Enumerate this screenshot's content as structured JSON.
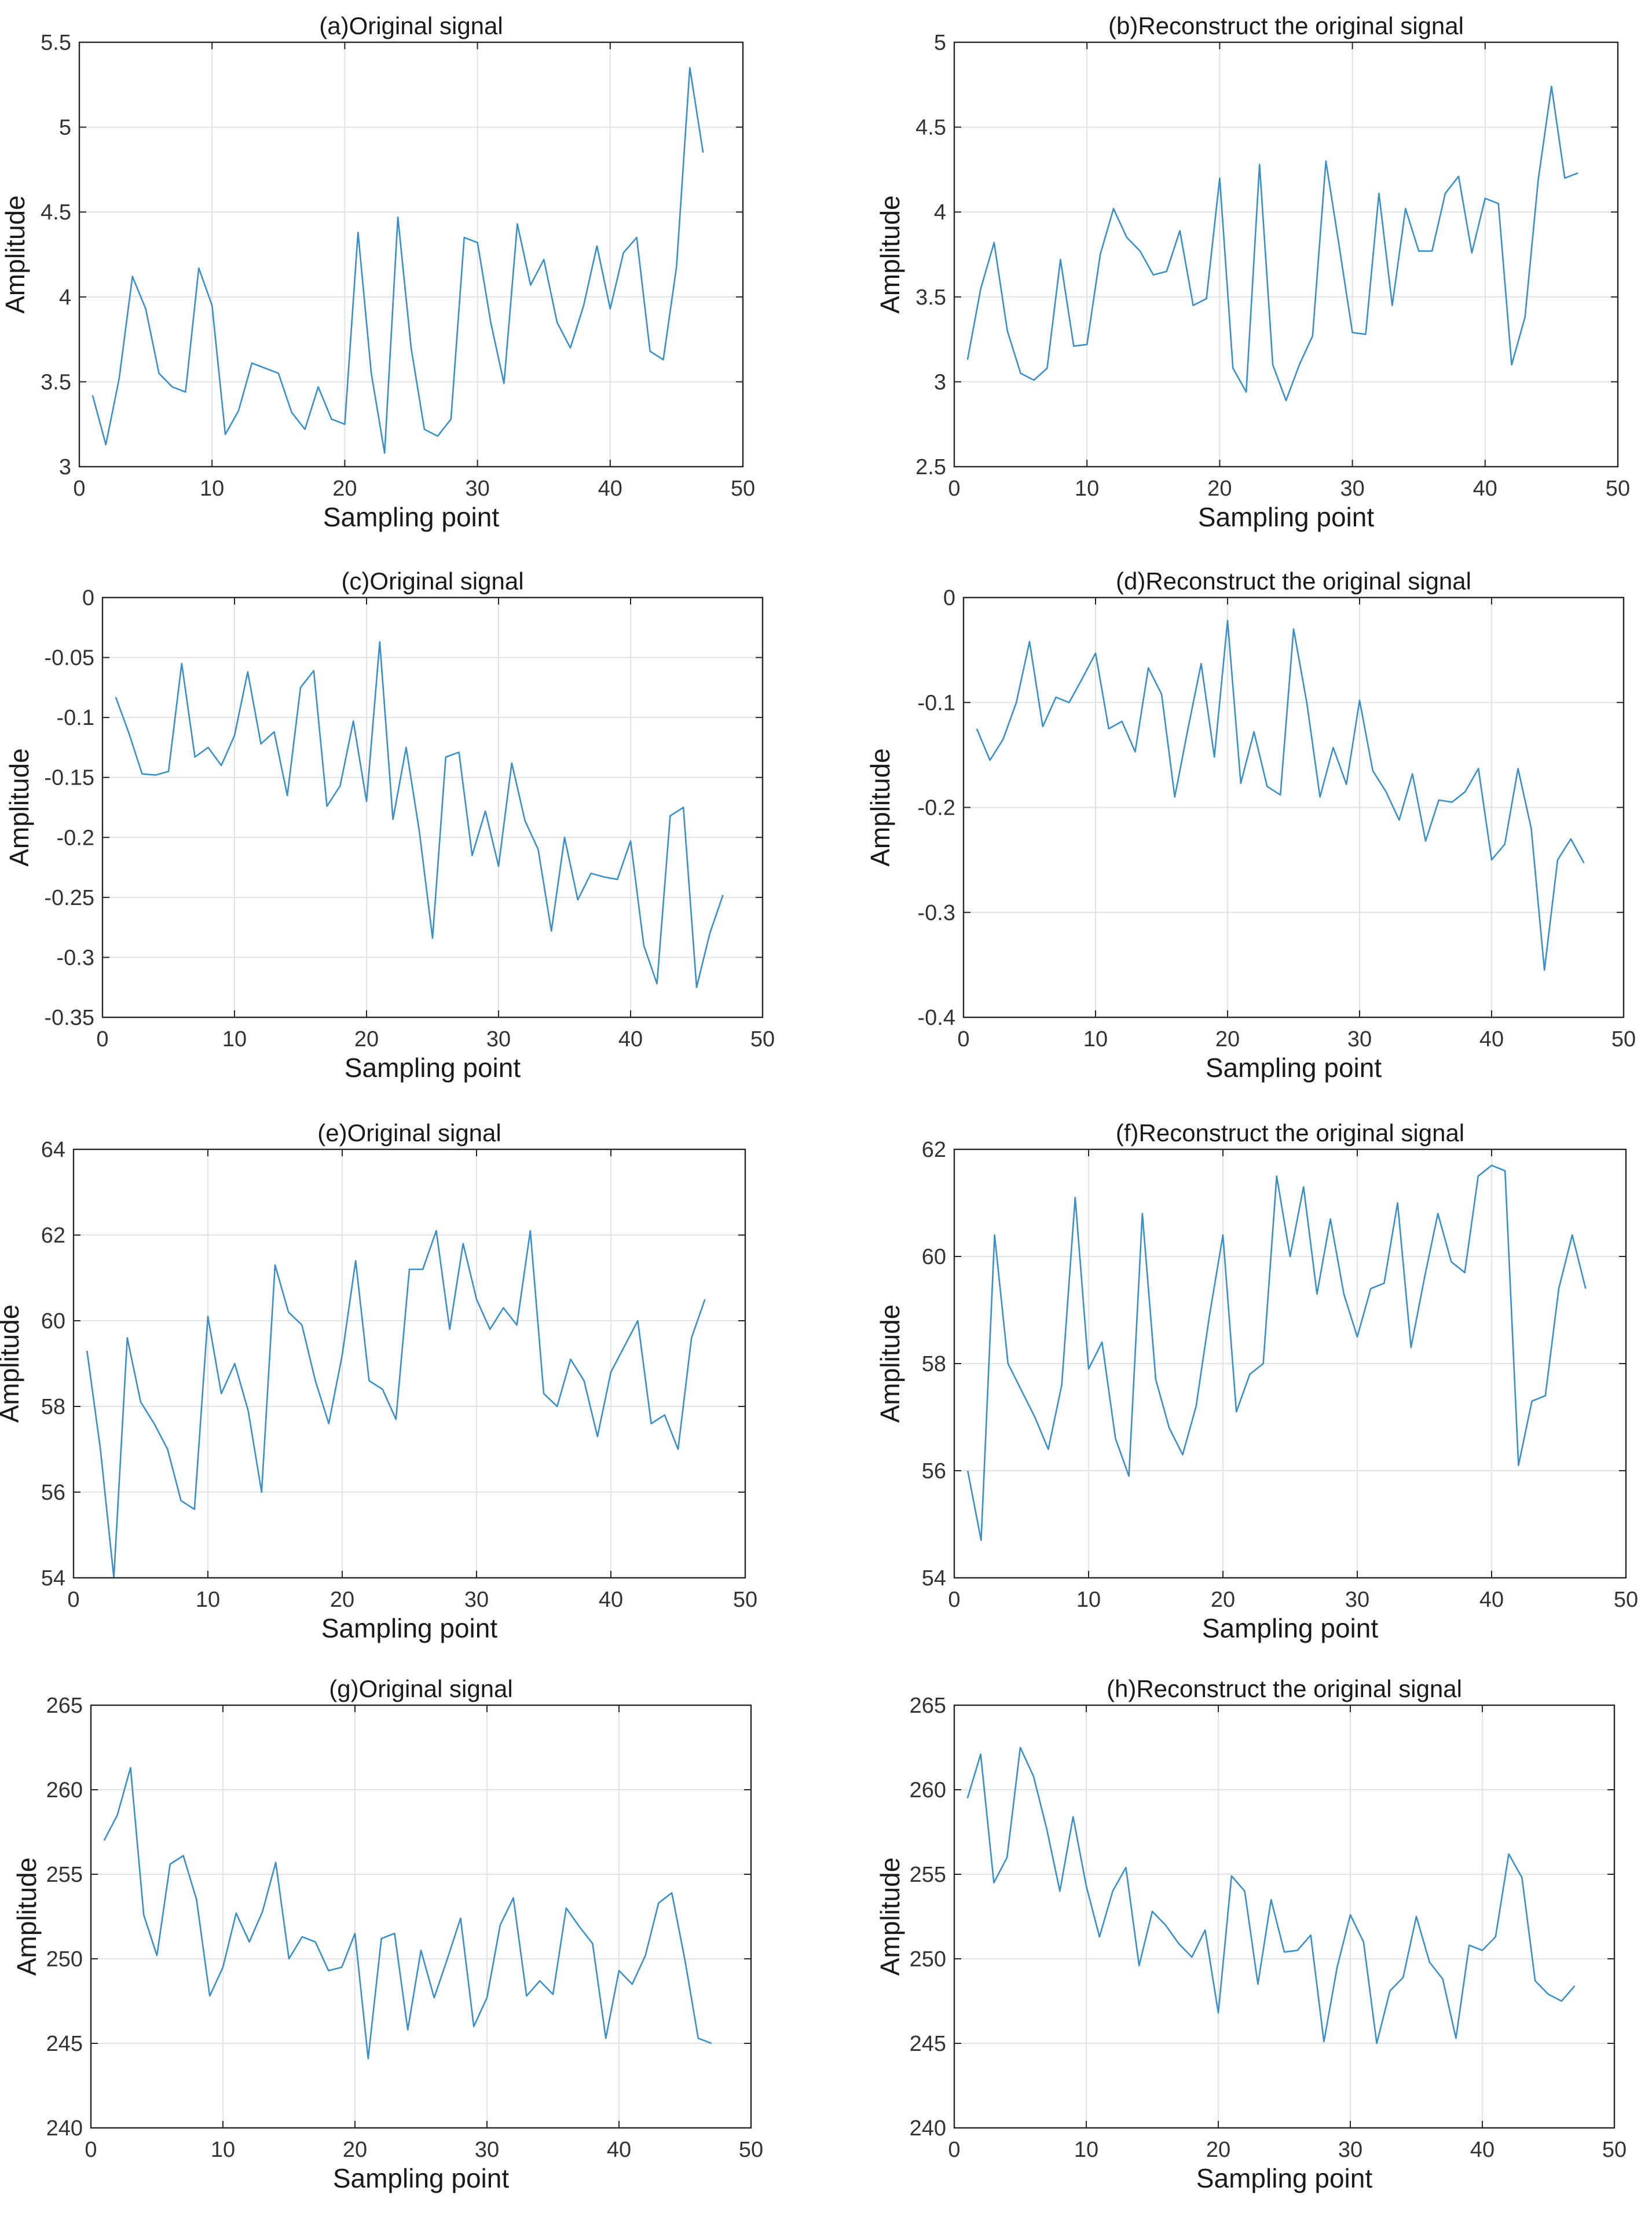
{
  "figure": {
    "background": "#ffffff"
  },
  "style": {
    "line_color": "#3a8fc7",
    "grid_color": "#e2e2e2",
    "axis_color": "#262626",
    "text_color": "#1a1a1a"
  },
  "chart_data": [
    {
      "id": "a",
      "type": "line",
      "title": "(a)Original signal",
      "xlabel": "Sampling point",
      "ylabel": "Amplitude",
      "xlim": [
        0,
        50
      ],
      "ylim": [
        3,
        5.5
      ],
      "xticks": [
        0,
        10,
        20,
        30,
        40,
        50
      ],
      "yticks": [
        3,
        3.5,
        4,
        4.5,
        5,
        5.5
      ],
      "xtick_labels": [
        "0",
        "10",
        "20",
        "30",
        "40",
        "50"
      ],
      "ytick_labels": [
        "3",
        "3.5",
        "4",
        "4.5",
        "5",
        "5.5"
      ],
      "grid": true,
      "x": [
        1,
        2,
        3,
        4,
        5,
        6,
        7,
        8,
        9,
        10,
        11,
        12,
        13,
        14,
        15,
        16,
        17,
        18,
        19,
        20,
        21,
        22,
        23,
        24,
        25,
        26,
        27,
        28,
        29,
        30,
        31,
        32,
        33,
        34,
        35,
        36,
        37,
        38,
        39,
        40,
        41,
        42,
        43,
        44,
        45,
        46,
        47
      ],
      "y": [
        3.42,
        3.13,
        3.52,
        4.12,
        3.93,
        3.55,
        3.47,
        3.44,
        4.17,
        3.95,
        3.19,
        3.33,
        3.61,
        3.58,
        3.55,
        3.32,
        3.22,
        3.47,
        3.28,
        3.25,
        4.38,
        3.55,
        3.08,
        4.47,
        3.7,
        3.22,
        3.18,
        3.28,
        4.35,
        4.32,
        3.85,
        3.49,
        4.43,
        4.07,
        4.22,
        3.85,
        3.7,
        3.95,
        4.3,
        3.93,
        4.26,
        4.35,
        3.68,
        3.63,
        4.18,
        5.35,
        4.85
      ]
    },
    {
      "id": "b",
      "type": "line",
      "title": "(b)Reconstruct the original signal",
      "xlabel": "Sampling point",
      "ylabel": "Amplitude",
      "xlim": [
        0,
        50
      ],
      "ylim": [
        2.5,
        5
      ],
      "xticks": [
        0,
        10,
        20,
        30,
        40,
        50
      ],
      "yticks": [
        2.5,
        3,
        3.5,
        4,
        4.5,
        5
      ],
      "xtick_labels": [
        "0",
        "10",
        "20",
        "30",
        "40",
        "50"
      ],
      "ytick_labels": [
        "2.5",
        "3",
        "3.5",
        "4",
        "4.5",
        "5"
      ],
      "grid": true,
      "x": [
        1,
        2,
        3,
        4,
        5,
        6,
        7,
        8,
        9,
        10,
        11,
        12,
        13,
        14,
        15,
        16,
        17,
        18,
        19,
        20,
        21,
        22,
        23,
        24,
        25,
        26,
        27,
        28,
        29,
        30,
        31,
        32,
        33,
        34,
        35,
        36,
        37,
        38,
        39,
        40,
        41,
        42,
        43,
        44,
        45,
        46,
        47
      ],
      "y": [
        3.13,
        3.55,
        3.82,
        3.3,
        3.05,
        3.01,
        3.08,
        3.72,
        3.21,
        3.22,
        3.75,
        4.02,
        3.85,
        3.77,
        3.63,
        3.65,
        3.89,
        3.45,
        3.49,
        4.2,
        3.08,
        2.94,
        4.28,
        3.1,
        2.89,
        3.1,
        3.27,
        4.3,
        3.8,
        3.29,
        3.28,
        4.11,
        3.45,
        4.02,
        3.77,
        3.77,
        4.11,
        4.21,
        3.76,
        4.08,
        4.05,
        3.1,
        3.38,
        4.19,
        4.74,
        4.2,
        4.23
      ]
    },
    {
      "id": "c",
      "type": "line",
      "title": "(c)Original signal",
      "xlabel": "Sampling point",
      "ylabel": "Amplitude",
      "xlim": [
        0,
        50
      ],
      "ylim": [
        -0.35,
        0
      ],
      "xticks": [
        0,
        10,
        20,
        30,
        40,
        50
      ],
      "yticks": [
        -0.35,
        -0.3,
        -0.25,
        -0.2,
        -0.15,
        -0.1,
        -0.05,
        0
      ],
      "xtick_labels": [
        "0",
        "10",
        "20",
        "30",
        "40",
        "50"
      ],
      "ytick_labels": [
        "-0.35",
        "-0.3",
        "-0.25",
        "-0.2",
        "-0.15",
        "-0.1",
        "-0.05",
        "0"
      ],
      "grid": true,
      "x": [
        1,
        2,
        3,
        4,
        5,
        6,
        7,
        8,
        9,
        10,
        11,
        12,
        13,
        14,
        15,
        16,
        17,
        18,
        19,
        20,
        21,
        22,
        23,
        24,
        25,
        26,
        27,
        28,
        29,
        30,
        31,
        32,
        33,
        34,
        35,
        36,
        37,
        38,
        39,
        40,
        41,
        42,
        43,
        44,
        45,
        46,
        47
      ],
      "y": [
        -0.083,
        -0.113,
        -0.147,
        -0.148,
        -0.145,
        -0.055,
        -0.133,
        -0.125,
        -0.14,
        -0.115,
        -0.062,
        -0.122,
        -0.112,
        -0.165,
        -0.075,
        -0.061,
        -0.174,
        -0.157,
        -0.103,
        -0.17,
        -0.037,
        -0.185,
        -0.125,
        -0.195,
        -0.284,
        -0.133,
        -0.129,
        -0.215,
        -0.178,
        -0.224,
        -0.138,
        -0.186,
        -0.21,
        -0.278,
        -0.2,
        -0.252,
        -0.23,
        -0.233,
        -0.235,
        -0.203,
        -0.29,
        -0.322,
        -0.182,
        -0.175,
        -0.325,
        -0.28,
        -0.248
      ]
    },
    {
      "id": "d",
      "type": "line",
      "title": "(d)Reconstruct the original signal",
      "xlabel": "Sampling point",
      "ylabel": "Amplitude",
      "xlim": [
        0,
        50
      ],
      "ylim": [
        -0.4,
        0
      ],
      "xticks": [
        0,
        10,
        20,
        30,
        40,
        50
      ],
      "yticks": [
        -0.4,
        -0.3,
        -0.2,
        -0.1,
        0
      ],
      "xtick_labels": [
        "0",
        "10",
        "20",
        "30",
        "40",
        "50"
      ],
      "ytick_labels": [
        "-0.4",
        "-0.3",
        "-0.2",
        "-0.1",
        "0"
      ],
      "grid": true,
      "x": [
        1,
        2,
        3,
        4,
        5,
        6,
        7,
        8,
        9,
        10,
        11,
        12,
        13,
        14,
        15,
        16,
        17,
        18,
        19,
        20,
        21,
        22,
        23,
        24,
        25,
        26,
        27,
        28,
        29,
        30,
        31,
        32,
        33,
        34,
        35,
        36,
        37,
        38,
        39,
        40,
        41,
        42,
        43,
        44,
        45,
        46,
        47
      ],
      "y": [
        -0.125,
        -0.155,
        -0.135,
        -0.1,
        -0.042,
        -0.123,
        -0.095,
        -0.1,
        -0.077,
        -0.053,
        -0.125,
        -0.118,
        -0.147,
        -0.067,
        -0.092,
        -0.19,
        -0.125,
        -0.063,
        -0.152,
        -0.022,
        -0.177,
        -0.128,
        -0.18,
        -0.188,
        -0.03,
        -0.1,
        -0.19,
        -0.143,
        -0.178,
        -0.098,
        -0.165,
        -0.185,
        -0.212,
        -0.168,
        -0.232,
        -0.193,
        -0.195,
        -0.185,
        -0.163,
        -0.25,
        -0.235,
        -0.163,
        -0.22,
        -0.355,
        -0.25,
        -0.23,
        -0.253
      ]
    },
    {
      "id": "e",
      "type": "line",
      "title": "(e)Original signal",
      "xlabel": "Sampling point",
      "ylabel": "Amplitude",
      "xlim": [
        0,
        50
      ],
      "ylim": [
        54,
        64
      ],
      "xticks": [
        0,
        10,
        20,
        30,
        40,
        50
      ],
      "yticks": [
        54,
        56,
        58,
        60,
        62,
        64
      ],
      "xtick_labels": [
        "0",
        "10",
        "20",
        "30",
        "40",
        "50"
      ],
      "ytick_labels": [
        "54",
        "56",
        "58",
        "60",
        "62",
        "64"
      ],
      "grid": true,
      "x": [
        1,
        2,
        3,
        4,
        5,
        6,
        7,
        8,
        9,
        10,
        11,
        12,
        13,
        14,
        15,
        16,
        17,
        18,
        19,
        20,
        21,
        22,
        23,
        24,
        25,
        26,
        27,
        28,
        29,
        30,
        31,
        32,
        33,
        34,
        35,
        36,
        37,
        38,
        39,
        40,
        41,
        42,
        43,
        44,
        45,
        46,
        47
      ],
      "y": [
        59.3,
        57.0,
        54.0,
        59.6,
        58.1,
        57.6,
        57.0,
        55.8,
        55.6,
        60.1,
        58.3,
        59.0,
        57.9,
        56.0,
        61.3,
        60.2,
        59.9,
        58.6,
        57.6,
        59.2,
        61.4,
        58.6,
        58.4,
        57.7,
        61.2,
        61.2,
        62.1,
        59.8,
        61.8,
        60.5,
        59.8,
        60.3,
        59.9,
        62.1,
        58.3,
        58.0,
        59.1,
        58.6,
        57.3,
        58.8,
        59.4,
        60.0,
        57.6,
        57.8,
        57.0,
        59.6,
        60.5
      ]
    },
    {
      "id": "f",
      "type": "line",
      "title": "(f)Reconstruct the original signal",
      "xlabel": "Sampling point",
      "ylabel": "Amplitude",
      "xlim": [
        0,
        50
      ],
      "ylim": [
        54,
        62
      ],
      "xticks": [
        0,
        10,
        20,
        30,
        40,
        50
      ],
      "yticks": [
        54,
        56,
        58,
        60,
        62
      ],
      "xtick_labels": [
        "0",
        "10",
        "20",
        "30",
        "40",
        "50"
      ],
      "ytick_labels": [
        "54",
        "56",
        "58",
        "60",
        "62"
      ],
      "grid": true,
      "x": [
        1,
        2,
        3,
        4,
        5,
        6,
        7,
        8,
        9,
        10,
        11,
        12,
        13,
        14,
        15,
        16,
        17,
        18,
        19,
        20,
        21,
        22,
        23,
        24,
        25,
        26,
        27,
        28,
        29,
        30,
        31,
        32,
        33,
        34,
        35,
        36,
        37,
        38,
        39,
        40,
        41,
        42,
        43,
        44,
        45,
        46,
        47
      ],
      "y": [
        56.0,
        54.7,
        60.4,
        58.0,
        57.5,
        57.0,
        56.4,
        57.6,
        61.1,
        57.9,
        58.4,
        56.6,
        55.9,
        60.8,
        57.7,
        56.8,
        56.3,
        57.2,
        58.9,
        60.4,
        57.1,
        57.8,
        58.0,
        61.5,
        60.0,
        61.3,
        59.3,
        60.7,
        59.3,
        58.5,
        59.4,
        59.5,
        61.0,
        58.3,
        59.6,
        60.8,
        59.9,
        59.7,
        61.5,
        61.7,
        61.6,
        56.1,
        57.3,
        57.4,
        59.4,
        60.4,
        59.4
      ]
    },
    {
      "id": "g",
      "type": "line",
      "title": "(g)Original signal",
      "xlabel": "Sampling point",
      "ylabel": "Amplitude",
      "xlim": [
        0,
        50
      ],
      "ylim": [
        240,
        265
      ],
      "xticks": [
        0,
        10,
        20,
        30,
        40,
        50
      ],
      "yticks": [
        240,
        245,
        250,
        255,
        260,
        265
      ],
      "xtick_labels": [
        "0",
        "10",
        "20",
        "30",
        "40",
        "50"
      ],
      "ytick_labels": [
        "240",
        "245",
        "250",
        "255",
        "260",
        "265"
      ],
      "grid": true,
      "x": [
        1,
        2,
        3,
        4,
        5,
        6,
        7,
        8,
        9,
        10,
        11,
        12,
        13,
        14,
        15,
        16,
        17,
        18,
        19,
        20,
        21,
        22,
        23,
        24,
        25,
        26,
        27,
        28,
        29,
        30,
        31,
        32,
        33,
        34,
        35,
        36,
        37,
        38,
        39,
        40,
        41,
        42,
        43,
        44,
        45,
        46,
        47
      ],
      "y": [
        257.0,
        258.5,
        261.3,
        252.6,
        250.2,
        255.6,
        256.1,
        253.5,
        247.8,
        249.5,
        252.7,
        251.0,
        252.8,
        255.7,
        250.0,
        251.3,
        251.0,
        249.3,
        249.5,
        251.5,
        244.1,
        251.2,
        251.5,
        245.8,
        250.5,
        247.7,
        250.0,
        252.4,
        246.0,
        247.7,
        252.0,
        253.6,
        247.8,
        248.7,
        247.9,
        253.0,
        251.9,
        250.9,
        245.3,
        249.3,
        248.5,
        250.2,
        253.3,
        253.9,
        249.9,
        245.3,
        245.0
      ]
    },
    {
      "id": "h",
      "type": "line",
      "title": "(h)Reconstruct the original signal",
      "xlabel": "Sampling point",
      "ylabel": "Amplitude",
      "xlim": [
        0,
        50
      ],
      "ylim": [
        240,
        265
      ],
      "xticks": [
        0,
        10,
        20,
        30,
        40,
        50
      ],
      "yticks": [
        240,
        245,
        250,
        255,
        260,
        265
      ],
      "xtick_labels": [
        "0",
        "10",
        "20",
        "30",
        "40",
        "50"
      ],
      "ytick_labels": [
        "240",
        "245",
        "250",
        "255",
        "260",
        "265"
      ],
      "grid": true,
      "x": [
        1,
        2,
        3,
        4,
        5,
        6,
        7,
        8,
        9,
        10,
        11,
        12,
        13,
        14,
        15,
        16,
        17,
        18,
        19,
        20,
        21,
        22,
        23,
        24,
        25,
        26,
        27,
        28,
        29,
        30,
        31,
        32,
        33,
        34,
        35,
        36,
        37,
        38,
        39,
        40,
        41,
        42,
        43,
        44,
        45,
        46,
        47
      ],
      "y": [
        259.5,
        262.1,
        254.5,
        256.0,
        262.5,
        260.8,
        257.7,
        254.0,
        258.4,
        254.3,
        251.3,
        254.0,
        255.4,
        249.6,
        252.8,
        252.0,
        250.9,
        250.1,
        251.7,
        246.8,
        254.9,
        254.0,
        248.5,
        253.5,
        250.4,
        250.5,
        251.4,
        245.1,
        249.5,
        252.6,
        251.0,
        245.0,
        248.1,
        248.9,
        252.5,
        249.8,
        248.8,
        245.3,
        250.8,
        250.5,
        251.3,
        256.2,
        254.8,
        248.7,
        247.9,
        247.5,
        248.4
      ]
    }
  ]
}
